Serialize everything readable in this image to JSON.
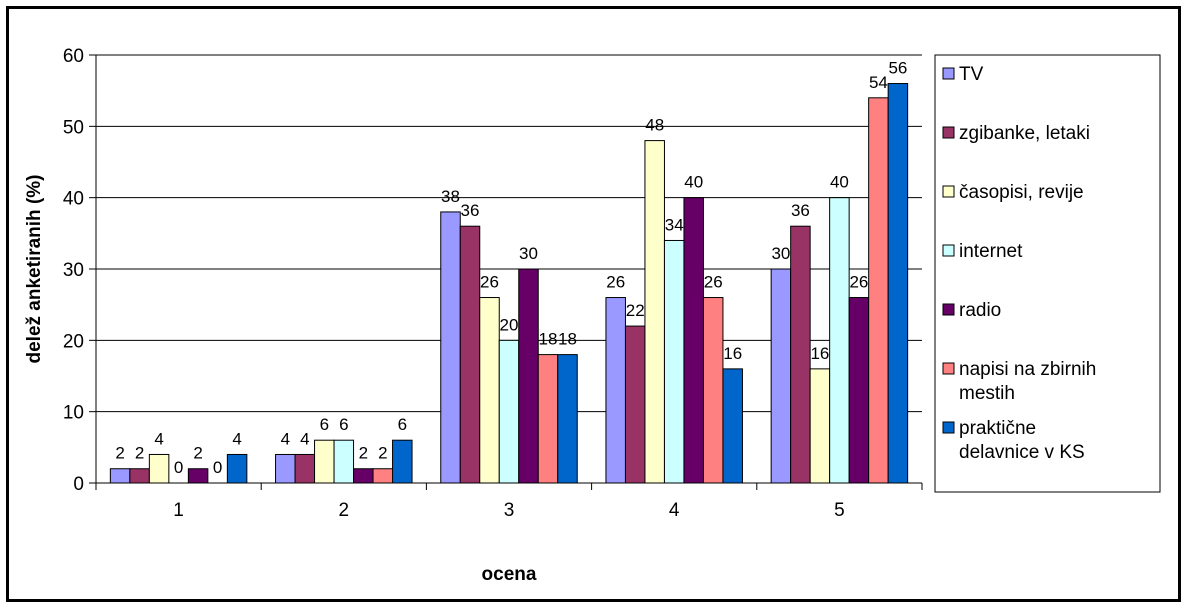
{
  "chart_data": {
    "type": "bar",
    "title": "",
    "xlabel": "ocena",
    "ylabel": "delež anketiranih (%)",
    "categories": [
      "1",
      "2",
      "3",
      "4",
      "5"
    ],
    "ylim": [
      0,
      60
    ],
    "yticks": [
      0,
      10,
      20,
      30,
      40,
      50,
      60
    ],
    "grid": true,
    "legend_position": "right",
    "series": [
      {
        "name": "TV",
        "color": "#9999ff",
        "values": [
          2,
          4,
          38,
          26,
          30
        ],
        "labels": [
          "2",
          "4",
          "38",
          "26",
          "30"
        ]
      },
      {
        "name": "zgibanke, letaki",
        "color": "#993366",
        "values": [
          2,
          4,
          36,
          22,
          36
        ],
        "labels": [
          "2",
          "4",
          "36",
          "22",
          "36"
        ]
      },
      {
        "name": "časopisi, revije",
        "color": "#ffffcc",
        "values": [
          4,
          6,
          26,
          48,
          16
        ],
        "labels": [
          "4",
          "6",
          "26",
          "48",
          "16"
        ]
      },
      {
        "name": "internet",
        "color": "#ccffff",
        "values": [
          0,
          6,
          20,
          34,
          40
        ],
        "labels": [
          "0",
          "6",
          "20",
          "34",
          "40"
        ]
      },
      {
        "name": "radio",
        "color": "#660066",
        "values": [
          2,
          2,
          30,
          40,
          26
        ],
        "labels": [
          "2",
          "2",
          "30",
          "40",
          "26"
        ]
      },
      {
        "name": "napisi na zbirnih mestih",
        "color": "#ff8080",
        "values": [
          0,
          2,
          18,
          26,
          54
        ],
        "labels": [
          "0",
          "2",
          "18",
          "26",
          "54"
        ]
      },
      {
        "name": "praktične delavnice v KS",
        "color": "#0066cc",
        "values": [
          4,
          6,
          18,
          16,
          56
        ],
        "labels": [
          "4",
          "6",
          "18",
          "16",
          "56"
        ]
      }
    ]
  }
}
